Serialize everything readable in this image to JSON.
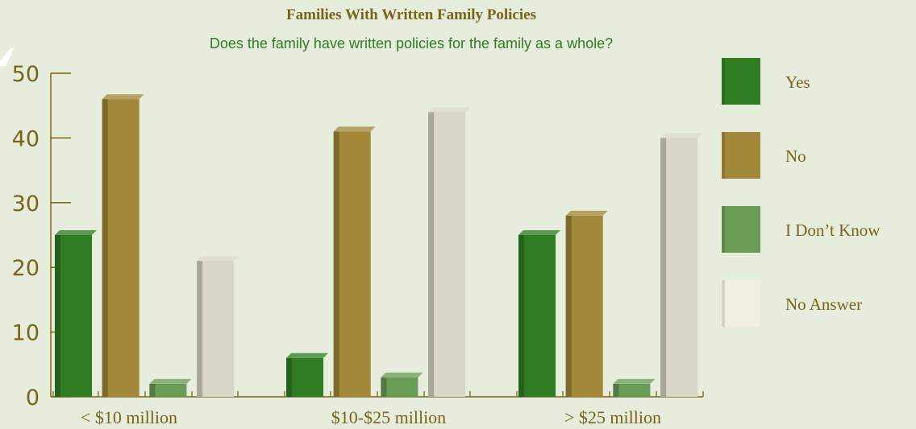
{
  "chart_data": {
    "type": "bar",
    "title": "Families With Written Family Policies",
    "subtitle": "Does the family have written policies for the family as a whole?",
    "categories": [
      "< $10 million",
      "$10-$25 million",
      "> $25 million"
    ],
    "series": [
      {
        "name": "Yes",
        "values": [
          25,
          6,
          25
        ],
        "color": "#2e7d22"
      },
      {
        "name": "No",
        "values": [
          46,
          41,
          28
        ],
        "color": "#a28838"
      },
      {
        "name": "I Don’t Know",
        "values": [
          2,
          3,
          2
        ],
        "color": "#6b9c55"
      },
      {
        "name": "No Answer",
        "values": [
          21,
          44,
          40
        ],
        "color": "#d8d6c6"
      }
    ],
    "yticks": [
      "0",
      "10",
      "20",
      "30",
      "40",
      "50"
    ],
    "ylim": [
      0,
      50
    ],
    "xlabel": "",
    "ylabel": "",
    "grid": false,
    "legend_position": "right",
    "legend_colors": [
      "#2e7d22",
      "#a28838",
      "#6b9c55",
      "#f3efe0"
    ],
    "axis_color": "#7a6418",
    "text_color": "#7a6418",
    "tick_label_color": "#7a6418"
  }
}
